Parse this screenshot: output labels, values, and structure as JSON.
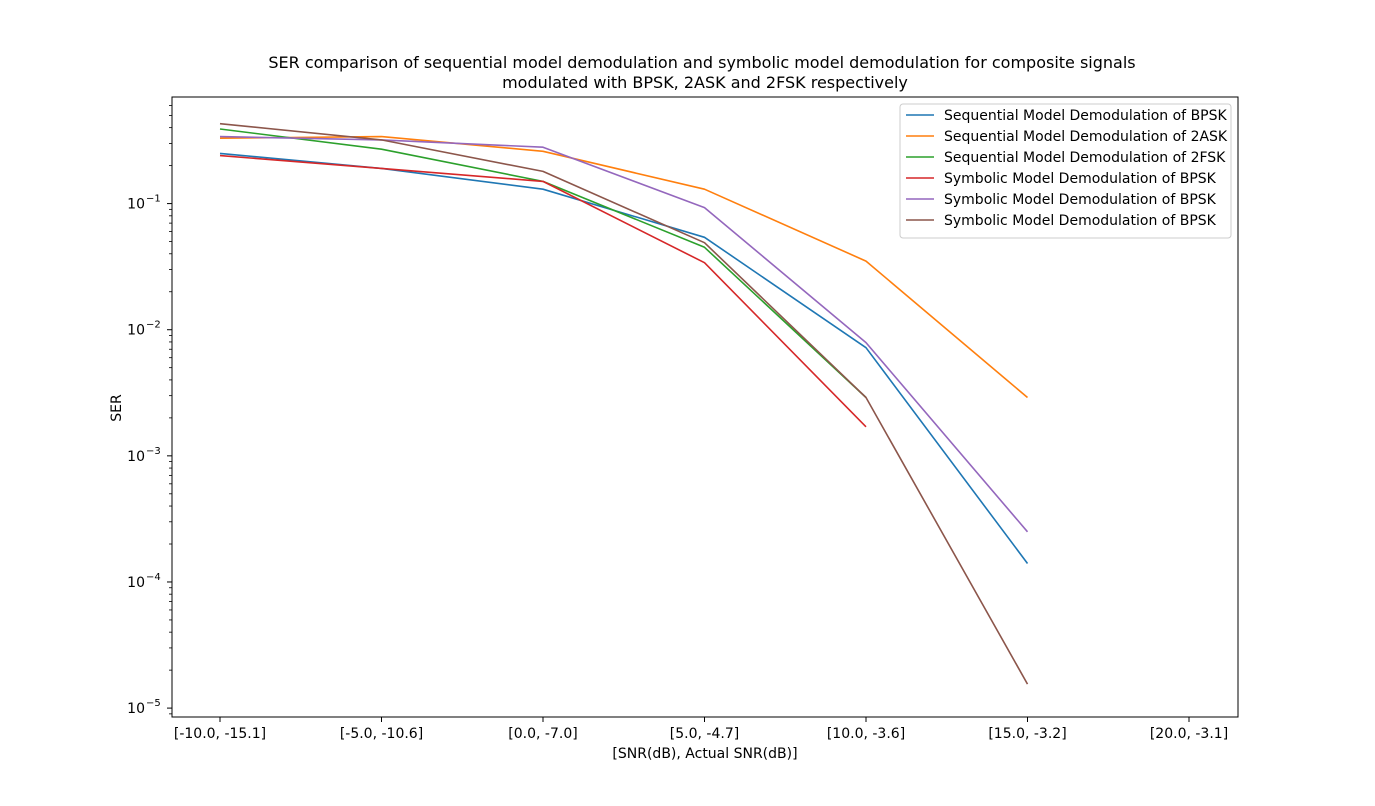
{
  "chart_data": {
    "type": "line",
    "title_lines": [
      "SER comparison of sequential model demodulation and symbolic model demodulation for composite signals",
      "modulated with BPSK, 2ASK and 2FSK respectively"
    ],
    "xlabel": "[SNR(dB), Actual SNR(dB)]",
    "ylabel": "SER",
    "y_scale": "log",
    "ylim": [
      8.5e-06,
      0.7
    ],
    "y_tick_labels": [
      {
        "value": 0.1,
        "base": "10",
        "exp": "−1"
      },
      {
        "value": 0.01,
        "base": "10",
        "exp": "−2"
      },
      {
        "value": 0.001,
        "base": "10",
        "exp": "−3"
      },
      {
        "value": 0.0001,
        "base": "10",
        "exp": "−4"
      },
      {
        "value": 1e-05,
        "base": "10",
        "exp": "−5"
      }
    ],
    "categories": [
      "[-10.0, -15.1]",
      "[-5.0, -10.6]",
      "[0.0, -7.0]",
      "[5.0, -4.7]",
      "[10.0, -3.6]",
      "[15.0, -3.2]",
      "[20.0, -3.1]"
    ],
    "grid": false,
    "legend_position": "top-right",
    "series": [
      {
        "name": "Sequential Model Demodulation of BPSK",
        "color": "#1f77b4",
        "values": [
          0.25,
          0.19,
          0.13,
          0.054,
          0.0072,
          0.00014,
          null
        ]
      },
      {
        "name": "Sequential Model Demodulation of 2ASK",
        "color": "#ff7f0e",
        "values": [
          0.33,
          0.34,
          0.26,
          0.13,
          0.035,
          0.0029,
          null
        ]
      },
      {
        "name": "Sequential Model Demodulation of 2FSK",
        "color": "#2ca02c",
        "values": [
          0.39,
          0.27,
          0.15,
          0.045,
          0.0029,
          null,
          null
        ]
      },
      {
        "name": "Symbolic Model Demodulation of BPSK",
        "color": "#d62728",
        "values": [
          0.24,
          0.19,
          0.15,
          0.034,
          0.0017,
          null,
          null
        ]
      },
      {
        "name": "Symbolic Model Demodulation of BPSK",
        "color": "#9467bd",
        "values": [
          0.34,
          0.32,
          0.28,
          0.093,
          0.0079,
          0.00025,
          null
        ]
      },
      {
        "name": "Symbolic Model Demodulation of BPSK",
        "color": "#8c564b",
        "values": [
          0.43,
          0.32,
          0.18,
          0.049,
          0.0029,
          1.55e-05,
          null
        ]
      }
    ]
  }
}
